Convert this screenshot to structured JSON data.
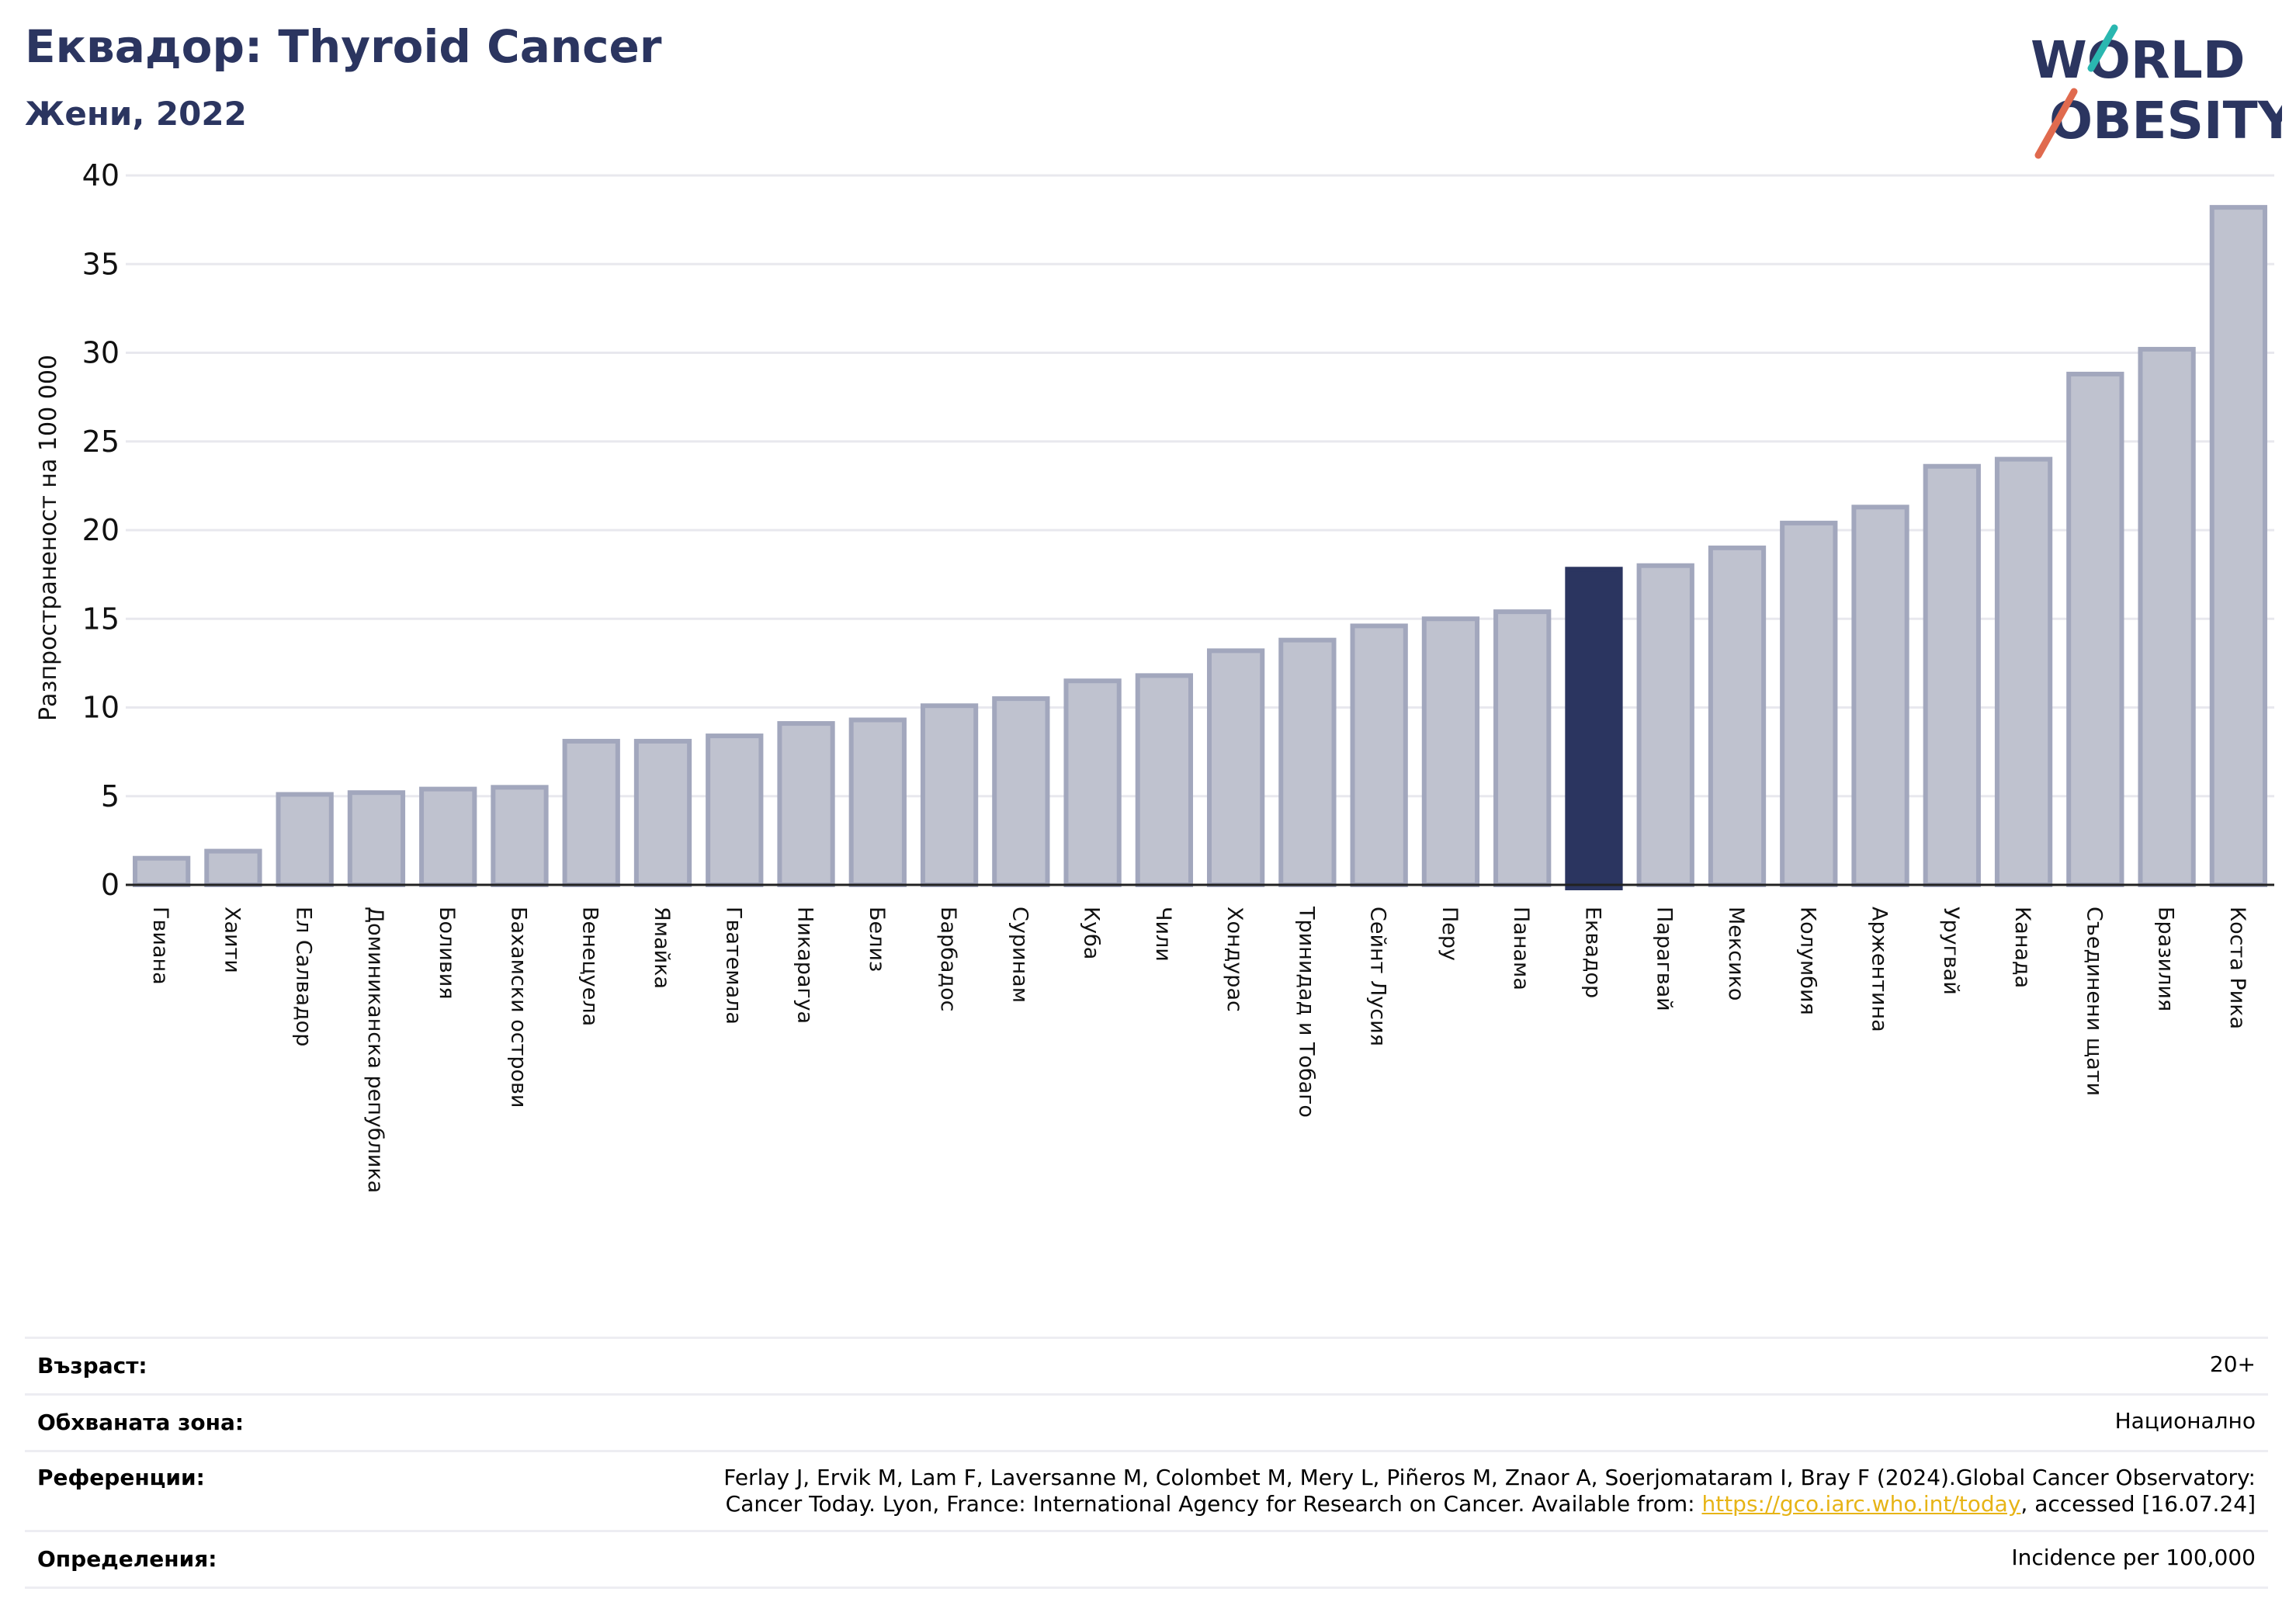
{
  "header": {
    "title": "Еквадор: Thyroid Cancer",
    "subtitle": "Жени, 2022",
    "logo_line1": "WORLD",
    "logo_line2": "OBESITY"
  },
  "colors": {
    "bar_fill": "#bfc2cf",
    "bar_stroke": "#a2a7bd",
    "highlight": "#2b3560",
    "title": "#2b3560",
    "logo_teal": "#2ab7b0",
    "logo_red": "#e06a4e",
    "link": "#e7b416"
  },
  "chart_data": {
    "type": "bar",
    "ylabel": "Разпространеност  на 100 000",
    "ylim": [
      0,
      40
    ],
    "yticks": [
      0,
      5,
      10,
      15,
      20,
      25,
      30,
      35,
      40
    ],
    "grid": true,
    "highlight_category": "Еквадор",
    "categories": [
      "Гвиана",
      "Хаити",
      "Ел Салвадор",
      "Доминиканска република",
      "Боливия",
      "Бахамски острови",
      "Венецуела",
      "Ямайка",
      "Гватемала",
      "Никарагуа",
      "Белиз",
      "Барбадос",
      "Суринам",
      "Куба",
      "Чили",
      "Хондурас",
      "Тринидад и Тобаго",
      "Сейнт Лусия",
      "Перу",
      "Панама",
      "Еквадор",
      "Парагвай",
      "Мексико",
      "Колумбия",
      "Аржентина",
      "Уругвай",
      "Канада",
      "Съединени щати",
      "Бразилия",
      "Коста Рика"
    ],
    "values": [
      1.5,
      1.9,
      5.1,
      5.2,
      5.4,
      5.5,
      8.1,
      8.1,
      8.4,
      9.1,
      9.3,
      10.1,
      10.5,
      11.5,
      11.8,
      13.2,
      13.8,
      14.6,
      15.0,
      15.4,
      17.8,
      18.0,
      19.0,
      20.4,
      21.3,
      23.6,
      24.0,
      28.8,
      30.2,
      38.2
    ]
  },
  "info": {
    "age_label": "Възраст:",
    "age_value": "20+",
    "coverage_label": "Обхваната зона:",
    "coverage_value": "Национално",
    "references_label": "Референции:",
    "references_line1": "Ferlay J, Ervik M, Lam F, Laversanne M, Colombet M, Mery L, Piñeros M, Znaor A, Soerjomataram I, Bray F (2024).Global Cancer Observatory:",
    "references_line2_pre": "Cancer Today. Lyon, France: International Agency for Research on Cancer. Available from: ",
    "references_link": "https://gco.iarc.who.int/today",
    "references_line2_post": ", accessed [16.07.24]",
    "definitions_label": "Определения:",
    "definitions_value": "Incidence per 100,000"
  }
}
